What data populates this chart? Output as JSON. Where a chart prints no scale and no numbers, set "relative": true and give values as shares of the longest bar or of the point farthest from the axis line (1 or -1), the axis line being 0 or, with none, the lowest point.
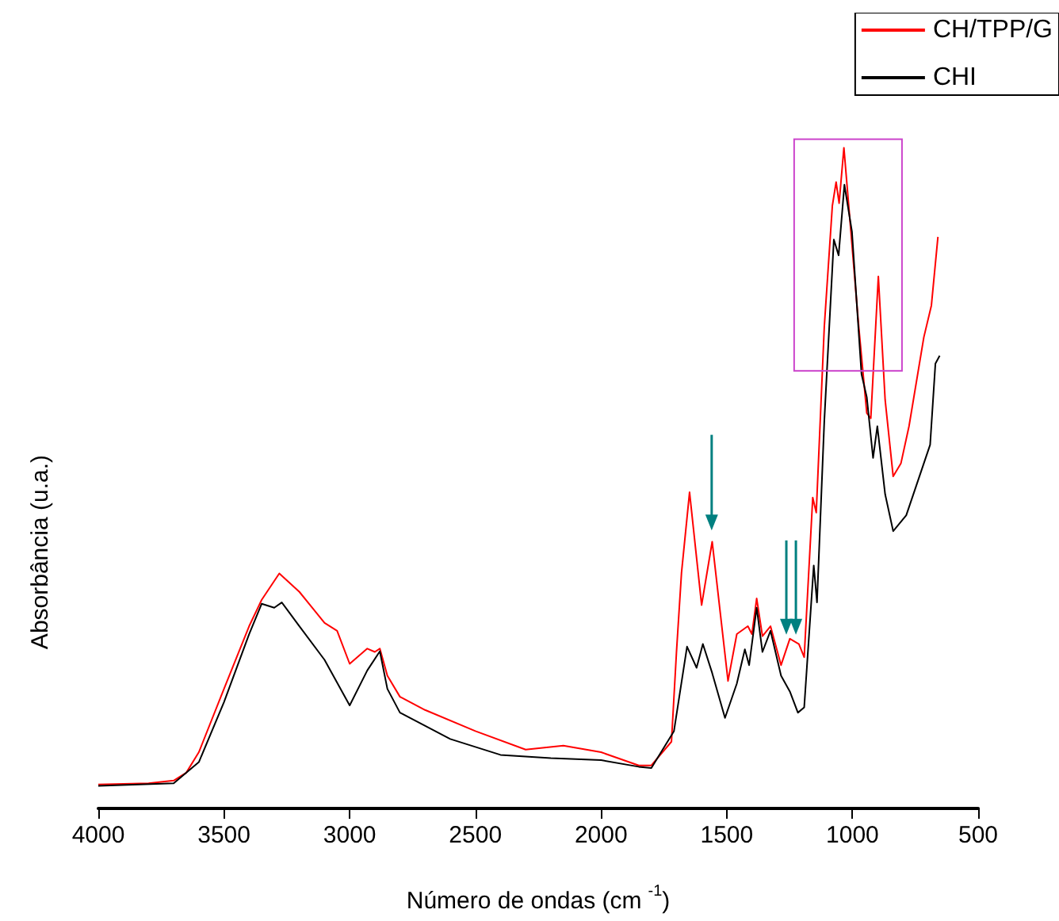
{
  "chart_data": {
    "type": "line",
    "relative": true,
    "xlabel": "Número de ondas (cm$^{-1}$)",
    "ylabel": "Absorbância (u.a.)",
    "xlim": [
      4000,
      500
    ],
    "xticks": [
      4000,
      3500,
      3000,
      2500,
      2000,
      1500,
      1000,
      500
    ],
    "legend": "top right",
    "grid": false,
    "series": [
      {
        "name": "CH/TPP/G",
        "color": "#ff0000",
        "x": [
          4000,
          3800,
          3700,
          3650,
          3600,
          3500,
          3400,
          3350,
          3280,
          3200,
          3100,
          3050,
          3000,
          2930,
          2900,
          2880,
          2850,
          2800,
          2700,
          2500,
          2300,
          2150,
          2000,
          1850,
          1800,
          1720,
          1700,
          1680,
          1648,
          1600,
          1558,
          1495,
          1460,
          1416,
          1400,
          1381,
          1358,
          1326,
          1284,
          1249,
          1213,
          1192,
          1158,
          1144,
          1112,
          1080,
          1065,
          1053,
          1034,
          1006,
          975,
          943,
          927,
          897,
          870,
          838,
          807,
          775,
          716,
          686,
          660
        ],
        "values": [
          0.035,
          0.037,
          0.041,
          0.053,
          0.084,
          0.18,
          0.275,
          0.315,
          0.355,
          0.327,
          0.28,
          0.268,
          0.218,
          0.241,
          0.236,
          0.241,
          0.2,
          0.168,
          0.148,
          0.116,
          0.088,
          0.094,
          0.084,
          0.064,
          0.064,
          0.1,
          0.236,
          0.356,
          0.478,
          0.307,
          0.403,
          0.192,
          0.263,
          0.275,
          0.263,
          0.317,
          0.26,
          0.275,
          0.216,
          0.256,
          0.248,
          0.228,
          0.47,
          0.447,
          0.729,
          0.912,
          0.948,
          0.916,
          1.0,
          0.872,
          0.729,
          0.598,
          0.59,
          0.805,
          0.618,
          0.502,
          0.522,
          0.578,
          0.713,
          0.761,
          0.865
        ]
      },
      {
        "name": "CHI",
        "color": "#000000",
        "x": [
          4000,
          3700,
          3600,
          3500,
          3400,
          3350,
          3300,
          3270,
          3200,
          3100,
          3000,
          2930,
          2880,
          2850,
          2800,
          2600,
          2400,
          2200,
          2000,
          1850,
          1800,
          1710,
          1658,
          1620,
          1595,
          1558,
          1507,
          1460,
          1428,
          1411,
          1381,
          1358,
          1326,
          1284,
          1249,
          1217,
          1192,
          1154,
          1141,
          1112,
          1074,
          1055,
          1032,
          1002,
          964,
          943,
          918,
          901,
          870,
          838,
          786,
          723,
          691,
          670,
          653
        ],
        "values": [
          0.033,
          0.037,
          0.069,
          0.16,
          0.263,
          0.309,
          0.303,
          0.311,
          0.275,
          0.224,
          0.155,
          0.208,
          0.237,
          0.18,
          0.144,
          0.104,
          0.08,
          0.075,
          0.072,
          0.062,
          0.06,
          0.116,
          0.244,
          0.212,
          0.248,
          0.204,
          0.136,
          0.188,
          0.24,
          0.216,
          0.303,
          0.236,
          0.268,
          0.2,
          0.176,
          0.144,
          0.152,
          0.367,
          0.311,
          0.586,
          0.861,
          0.837,
          0.944,
          0.873,
          0.657,
          0.622,
          0.53,
          0.578,
          0.475,
          0.419,
          0.443,
          0.514,
          0.55,
          0.673,
          0.685
        ]
      }
    ]
  }
}
